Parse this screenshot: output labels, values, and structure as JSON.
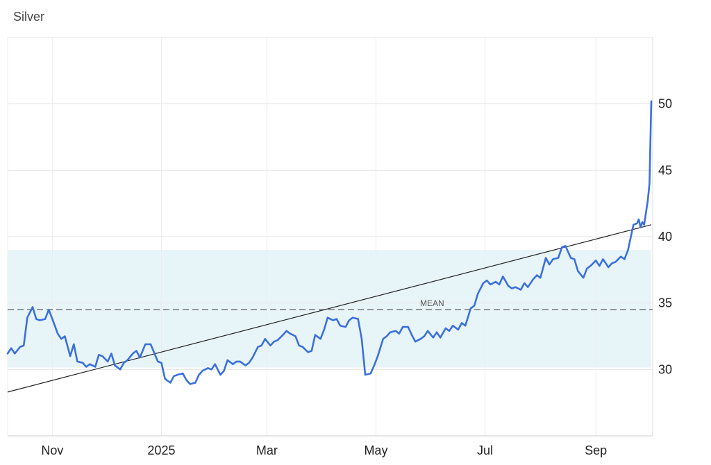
{
  "chart_data": {
    "type": "line",
    "title": "Silver",
    "xlabel": "",
    "ylabel": "",
    "x_range": [
      "2024-10-07",
      "2025-10-02"
    ],
    "ylim": [
      25,
      55
    ],
    "y_ticks": [
      30,
      35,
      40,
      45,
      50
    ],
    "x_ticks": [
      {
        "label": "Nov",
        "date": "2024-11-01"
      },
      {
        "label": "2025",
        "date": "2025-01-01"
      },
      {
        "label": "Mar",
        "date": "2025-03-01"
      },
      {
        "label": "May",
        "date": "2025-05-01"
      },
      {
        "label": "Jul",
        "date": "2025-07-01"
      },
      {
        "label": "Sep",
        "date": "2025-09-01"
      }
    ],
    "grid": true,
    "band": {
      "low": 30.15,
      "high": 39.0,
      "color": "#e8f5f8"
    },
    "mean": {
      "label": "MEAN",
      "value": 34.5
    },
    "trendline": {
      "start": [
        "2024-10-07",
        28.3
      ],
      "end": [
        "2025-10-02",
        40.9
      ]
    },
    "series": [
      {
        "color": "#3a6fe0",
        "points": [
          [
            "2024-10-07",
            31.2
          ],
          [
            "2024-10-09",
            31.6
          ],
          [
            "2024-10-11",
            31.2
          ],
          [
            "2024-10-14",
            31.7
          ],
          [
            "2024-10-16",
            31.8
          ],
          [
            "2024-10-18",
            33.9
          ],
          [
            "2024-10-21",
            34.7
          ],
          [
            "2024-10-23",
            33.8
          ],
          [
            "2024-10-25",
            33.7
          ],
          [
            "2024-10-28",
            33.8
          ],
          [
            "2024-10-30",
            34.5
          ],
          [
            "2024-11-01",
            33.8
          ],
          [
            "2024-11-04",
            32.7
          ],
          [
            "2024-11-06",
            32.3
          ],
          [
            "2024-11-08",
            32.5
          ],
          [
            "2024-11-11",
            31.0
          ],
          [
            "2024-11-13",
            31.9
          ],
          [
            "2024-11-15",
            30.6
          ],
          [
            "2024-11-18",
            30.5
          ],
          [
            "2024-11-20",
            30.2
          ],
          [
            "2024-11-22",
            30.4
          ],
          [
            "2024-11-25",
            30.2
          ],
          [
            "2024-11-27",
            31.1
          ],
          [
            "2024-11-29",
            31.0
          ],
          [
            "2024-12-02",
            30.6
          ],
          [
            "2024-12-04",
            31.2
          ],
          [
            "2024-12-06",
            30.3
          ],
          [
            "2024-12-09",
            30.0
          ],
          [
            "2024-12-11",
            30.5
          ],
          [
            "2024-12-13",
            30.7
          ],
          [
            "2024-12-16",
            31.2
          ],
          [
            "2024-12-18",
            31.4
          ],
          [
            "2024-12-20",
            30.9
          ],
          [
            "2024-12-23",
            31.9
          ],
          [
            "2024-12-26",
            31.9
          ],
          [
            "2024-12-30",
            30.6
          ],
          [
            "2025-01-01",
            30.5
          ],
          [
            "2025-01-03",
            29.3
          ],
          [
            "2025-01-06",
            29.0
          ],
          [
            "2025-01-08",
            29.5
          ],
          [
            "2025-01-10",
            29.6
          ],
          [
            "2025-01-13",
            29.7
          ],
          [
            "2025-01-15",
            29.2
          ],
          [
            "2025-01-17",
            28.9
          ],
          [
            "2025-01-20",
            29.0
          ],
          [
            "2025-01-22",
            29.6
          ],
          [
            "2025-01-24",
            29.9
          ],
          [
            "2025-01-27",
            30.1
          ],
          [
            "2025-01-29",
            30.0
          ],
          [
            "2025-01-31",
            30.4
          ],
          [
            "2025-02-03",
            29.6
          ],
          [
            "2025-02-05",
            29.9
          ],
          [
            "2025-02-07",
            30.7
          ],
          [
            "2025-02-10",
            30.4
          ],
          [
            "2025-02-12",
            30.6
          ],
          [
            "2025-02-14",
            30.6
          ],
          [
            "2025-02-17",
            30.3
          ],
          [
            "2025-02-19",
            30.5
          ],
          [
            "2025-02-21",
            30.9
          ],
          [
            "2025-02-24",
            31.7
          ],
          [
            "2025-02-26",
            31.8
          ],
          [
            "2025-02-28",
            32.3
          ],
          [
            "2025-03-03",
            31.8
          ],
          [
            "2025-03-05",
            32.1
          ],
          [
            "2025-03-07",
            32.2
          ],
          [
            "2025-03-10",
            32.6
          ],
          [
            "2025-03-12",
            32.9
          ],
          [
            "2025-03-14",
            32.7
          ],
          [
            "2025-03-17",
            32.5
          ],
          [
            "2025-03-19",
            31.8
          ],
          [
            "2025-03-21",
            31.7
          ],
          [
            "2025-03-24",
            31.3
          ],
          [
            "2025-03-26",
            31.4
          ],
          [
            "2025-03-28",
            32.6
          ],
          [
            "2025-03-31",
            32.3
          ],
          [
            "2025-04-02",
            33.0
          ],
          [
            "2025-04-04",
            33.9
          ],
          [
            "2025-04-07",
            33.7
          ],
          [
            "2025-04-09",
            33.8
          ],
          [
            "2025-04-11",
            33.3
          ],
          [
            "2025-04-14",
            33.2
          ],
          [
            "2025-04-16",
            33.7
          ],
          [
            "2025-04-18",
            33.9
          ],
          [
            "2025-04-21",
            33.8
          ],
          [
            "2025-04-23",
            32.3
          ],
          [
            "2025-04-25",
            29.6
          ],
          [
            "2025-04-28",
            29.7
          ],
          [
            "2025-04-30",
            30.3
          ],
          [
            "2025-05-02",
            31.0
          ],
          [
            "2025-05-05",
            32.3
          ],
          [
            "2025-05-07",
            32.5
          ],
          [
            "2025-05-09",
            32.8
          ],
          [
            "2025-05-12",
            32.9
          ],
          [
            "2025-05-14",
            32.7
          ],
          [
            "2025-05-16",
            33.2
          ],
          [
            "2025-05-19",
            33.2
          ],
          [
            "2025-05-21",
            32.6
          ],
          [
            "2025-05-23",
            32.1
          ],
          [
            "2025-05-26",
            32.3
          ],
          [
            "2025-05-28",
            32.5
          ],
          [
            "2025-05-30",
            32.9
          ],
          [
            "2025-06-02",
            32.4
          ],
          [
            "2025-06-04",
            32.8
          ],
          [
            "2025-06-06",
            32.4
          ],
          [
            "2025-06-09",
            33.1
          ],
          [
            "2025-06-11",
            32.9
          ],
          [
            "2025-06-13",
            33.3
          ],
          [
            "2025-06-16",
            33.0
          ],
          [
            "2025-06-18",
            33.5
          ],
          [
            "2025-06-20",
            33.3
          ],
          [
            "2025-06-23",
            34.6
          ],
          [
            "2025-06-25",
            34.8
          ],
          [
            "2025-06-27",
            35.7
          ],
          [
            "2025-06-30",
            36.5
          ],
          [
            "2025-07-02",
            36.7
          ],
          [
            "2025-07-04",
            36.4
          ],
          [
            "2025-07-07",
            36.6
          ],
          [
            "2025-07-09",
            36.4
          ],
          [
            "2025-07-11",
            37.0
          ],
          [
            "2025-07-14",
            36.3
          ],
          [
            "2025-07-16",
            36.1
          ],
          [
            "2025-07-18",
            36.2
          ],
          [
            "2025-07-21",
            36.0
          ],
          [
            "2025-07-23",
            36.5
          ],
          [
            "2025-07-25",
            36.2
          ],
          [
            "2025-07-28",
            36.8
          ],
          [
            "2025-07-30",
            37.1
          ],
          [
            "2025-08-01",
            36.9
          ],
          [
            "2025-08-04",
            38.4
          ],
          [
            "2025-08-06",
            37.9
          ],
          [
            "2025-08-08",
            38.3
          ],
          [
            "2025-08-11",
            38.4
          ],
          [
            "2025-08-13",
            39.2
          ],
          [
            "2025-08-15",
            39.3
          ],
          [
            "2025-08-18",
            38.4
          ],
          [
            "2025-08-20",
            38.3
          ],
          [
            "2025-08-22",
            37.4
          ],
          [
            "2025-08-25",
            36.9
          ],
          [
            "2025-08-27",
            37.6
          ],
          [
            "2025-08-29",
            37.8
          ],
          [
            "2025-09-01",
            38.2
          ],
          [
            "2025-09-03",
            37.8
          ],
          [
            "2025-09-05",
            38.3
          ],
          [
            "2025-09-08",
            37.7
          ],
          [
            "2025-09-10",
            38.0
          ],
          [
            "2025-09-12",
            38.1
          ],
          [
            "2025-09-15",
            38.5
          ],
          [
            "2025-09-17",
            38.3
          ],
          [
            "2025-09-19",
            39.0
          ],
          [
            "2025-09-22",
            40.9
          ],
          [
            "2025-09-24",
            41.0
          ],
          [
            "2025-09-25",
            41.3
          ],
          [
            "2025-09-26",
            40.7
          ],
          [
            "2025-09-27",
            41.1
          ],
          [
            "2025-09-28",
            40.9
          ],
          [
            "2025-09-29",
            41.8
          ],
          [
            "2025-09-30",
            42.7
          ],
          [
            "2025-10-01",
            44.0
          ],
          [
            "2025-10-02",
            50.2
          ]
        ]
      }
    ]
  }
}
